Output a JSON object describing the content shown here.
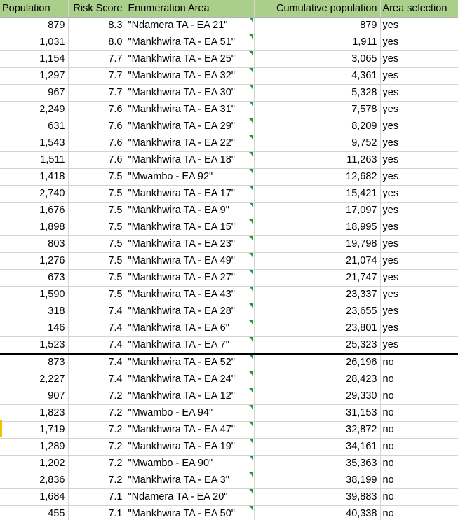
{
  "headers": {
    "population": "Population",
    "risk": "Risk Score",
    "area": "Enumeration Area",
    "cumulative": "Cumulative population",
    "selection": "Area selection"
  },
  "rows": [
    {
      "population": "879",
      "risk": "8.3",
      "area": "\"Ndamera TA - EA 21\"",
      "cumulative": "879",
      "selection": "yes"
    },
    {
      "population": "1,031",
      "risk": "8.0",
      "area": "\"Mankhwira TA - EA 51\"",
      "cumulative": "1,911",
      "selection": "yes"
    },
    {
      "population": "1,154",
      "risk": "7.7",
      "area": "\"Mankhwira TA - EA 25\"",
      "cumulative": "3,065",
      "selection": "yes"
    },
    {
      "population": "1,297",
      "risk": "7.7",
      "area": "\"Mankhwira TA - EA 32\"",
      "cumulative": "4,361",
      "selection": "yes"
    },
    {
      "population": "967",
      "risk": "7.7",
      "area": "\"Mankhwira TA - EA 30\"",
      "cumulative": "5,328",
      "selection": "yes"
    },
    {
      "population": "2,249",
      "risk": "7.6",
      "area": "\"Mankhwira TA - EA 31\"",
      "cumulative": "7,578",
      "selection": "yes"
    },
    {
      "population": "631",
      "risk": "7.6",
      "area": "\"Mankhwira TA - EA 29\"",
      "cumulative": "8,209",
      "selection": "yes"
    },
    {
      "population": "1,543",
      "risk": "7.6",
      "area": "\"Mankhwira TA - EA 22\"",
      "cumulative": "9,752",
      "selection": "yes"
    },
    {
      "population": "1,511",
      "risk": "7.6",
      "area": "\"Mankhwira TA - EA 18\"",
      "cumulative": "11,263",
      "selection": "yes"
    },
    {
      "population": "1,418",
      "risk": "7.5",
      "area": "\"Mwambo - EA 92\"",
      "cumulative": "12,682",
      "selection": "yes"
    },
    {
      "population": "2,740",
      "risk": "7.5",
      "area": "\"Mankhwira TA - EA 17\"",
      "cumulative": "15,421",
      "selection": "yes"
    },
    {
      "population": "1,676",
      "risk": "7.5",
      "area": "\"Mankhwira TA - EA 9\"",
      "cumulative": "17,097",
      "selection": "yes"
    },
    {
      "population": "1,898",
      "risk": "7.5",
      "area": "\"Mankhwira TA - EA 15\"",
      "cumulative": "18,995",
      "selection": "yes"
    },
    {
      "population": "803",
      "risk": "7.5",
      "area": "\"Mankhwira TA - EA 23\"",
      "cumulative": "19,798",
      "selection": "yes"
    },
    {
      "population": "1,276",
      "risk": "7.5",
      "area": "\"Mankhwira TA - EA 49\"",
      "cumulative": "21,074",
      "selection": "yes"
    },
    {
      "population": "673",
      "risk": "7.5",
      "area": "\"Mankhwira TA - EA 27\"",
      "cumulative": "21,747",
      "selection": "yes"
    },
    {
      "population": "1,590",
      "risk": "7.5",
      "area": "\"Mankhwira TA - EA 43\"",
      "cumulative": "23,337",
      "selection": "yes"
    },
    {
      "population": "318",
      "risk": "7.4",
      "area": "\"Mankhwira TA - EA 28\"",
      "cumulative": "23,655",
      "selection": "yes"
    },
    {
      "population": "146",
      "risk": "7.4",
      "area": "\"Mankhwira TA - EA 6\"",
      "cumulative": "23,801",
      "selection": "yes"
    },
    {
      "population": "1,523",
      "risk": "7.4",
      "area": "\"Mankhwira TA - EA 7\"",
      "cumulative": "25,323",
      "selection": "yes"
    },
    {
      "population": "873",
      "risk": "7.4",
      "area": "\"Mankhwira TA - EA 52\"",
      "cumulative": "26,196",
      "selection": "no"
    },
    {
      "population": "2,227",
      "risk": "7.4",
      "area": "\"Mankhwira TA - EA 24\"",
      "cumulative": "28,423",
      "selection": "no"
    },
    {
      "population": "907",
      "risk": "7.2",
      "area": "\"Mankhwira TA - EA 12\"",
      "cumulative": "29,330",
      "selection": "no"
    },
    {
      "population": "1,823",
      "risk": "7.2",
      "area": "\"Mwambo - EA 94\"",
      "cumulative": "31,153",
      "selection": "no"
    },
    {
      "population": "1,719",
      "risk": "7.2",
      "area": "\"Mankhwira TA - EA 47\"",
      "cumulative": "32,872",
      "selection": "no"
    },
    {
      "population": "1,289",
      "risk": "7.2",
      "area": "\"Mankhwira TA - EA 19\"",
      "cumulative": "34,161",
      "selection": "no"
    },
    {
      "population": "1,202",
      "risk": "7.2",
      "area": "\"Mwambo - EA 90\"",
      "cumulative": "35,363",
      "selection": "no"
    },
    {
      "population": "2,836",
      "risk": "7.2",
      "area": "\"Mankhwira TA - EA 3\"",
      "cumulative": "38,199",
      "selection": "no"
    },
    {
      "population": "1,684",
      "risk": "7.1",
      "area": "\"Ndamera TA - EA 20\"",
      "cumulative": "39,883",
      "selection": "no"
    },
    {
      "population": "455",
      "risk": "7.1",
      "area": "\"Mankhwira TA - EA 50\"",
      "cumulative": "40,338",
      "selection": "no"
    }
  ],
  "colors": {
    "header_fill": "#a9cf8a",
    "gridline": "#d4d4d4",
    "error_flag": "#1a9c3a",
    "row_marker": "#f2c200"
  }
}
